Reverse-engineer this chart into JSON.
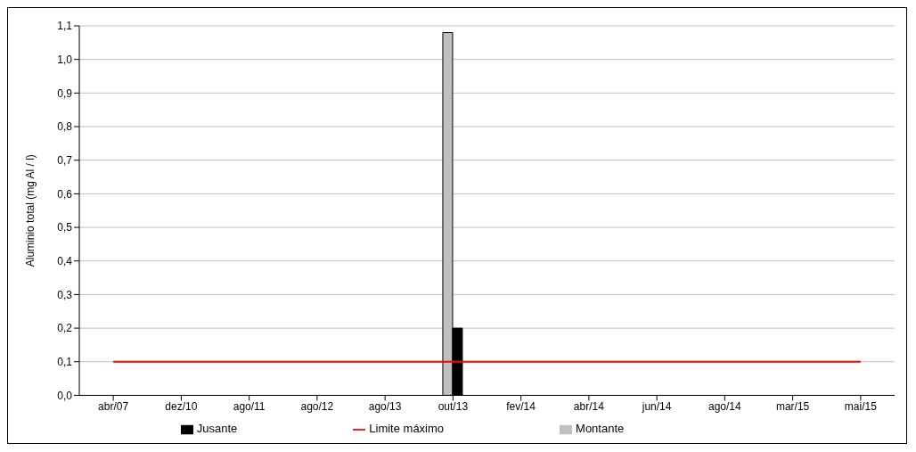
{
  "chart_data": {
    "type": "bar",
    "ylabel": "Aluminio total (mg Al / l)",
    "categories": [
      "abr/07",
      "dez/10",
      "ago/11",
      "ago/12",
      "ago/13",
      "out/13",
      "fev/14",
      "abr/14",
      "jun/14",
      "ago/14",
      "mar/15",
      "mai/15"
    ],
    "series": [
      {
        "name": "Montante",
        "color": "#c0c0c0",
        "values": [
          null,
          null,
          null,
          null,
          null,
          1.08,
          null,
          null,
          null,
          null,
          null,
          null
        ]
      },
      {
        "name": "Jusante",
        "color": "#000000",
        "values": [
          null,
          null,
          null,
          null,
          null,
          0.2,
          null,
          null,
          null,
          null,
          null,
          null
        ]
      },
      {
        "name": "Limite máximo",
        "type": "line",
        "color": "#ff0000",
        "values": [
          0.1,
          0.1,
          0.1,
          0.1,
          0.1,
          0.1,
          0.1,
          0.1,
          0.1,
          0.1,
          0.1,
          0.1
        ]
      }
    ],
    "ylim": [
      0,
      1.1
    ],
    "yticks": [
      {
        "value": 0,
        "label": "0,0"
      },
      {
        "value": 0.1,
        "label": "0,1"
      },
      {
        "value": 0.2,
        "label": "0,2"
      },
      {
        "value": 0.3,
        "label": "0,3"
      },
      {
        "value": 0.4,
        "label": "0,4"
      },
      {
        "value": 0.5,
        "label": "0,5"
      },
      {
        "value": 0.6,
        "label": "0,6"
      },
      {
        "value": 0.7,
        "label": "0,7"
      },
      {
        "value": 0.8,
        "label": "0,8"
      },
      {
        "value": 0.9,
        "label": "0,9"
      },
      {
        "value": 1.0,
        "label": "1,0"
      },
      {
        "value": 1.1,
        "label": "1,1"
      }
    ],
    "grid": "y",
    "legend": "bottom",
    "marker": "none"
  }
}
